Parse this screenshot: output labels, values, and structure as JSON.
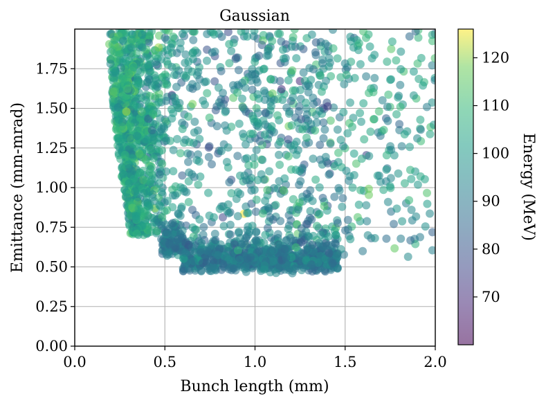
{
  "chart_data": {
    "type": "scatter",
    "title": "Gaussian",
    "xlabel": "Bunch length (mm)",
    "ylabel": "Emittance (mm-mrad)",
    "xlim": [
      0.0,
      2.0
    ],
    "ylim": [
      0.0,
      2.0
    ],
    "xticks": [
      "0.0",
      "0.5",
      "1.0",
      "1.5",
      "2.0"
    ],
    "xtick_values": [
      0.0,
      0.5,
      1.0,
      1.5,
      2.0
    ],
    "yticks": [
      "0.00",
      "0.25",
      "0.50",
      "0.75",
      "1.00",
      "1.25",
      "1.50",
      "1.75"
    ],
    "ytick_values": [
      0.0,
      0.25,
      0.5,
      0.75,
      1.0,
      1.25,
      1.5,
      1.75
    ],
    "grid": true,
    "colorbar": {
      "label": "Energy (MeV)",
      "range": [
        60,
        126
      ],
      "ticks": [
        "70",
        "80",
        "90",
        "100",
        "110",
        "120"
      ],
      "tick_values": [
        70,
        80,
        90,
        100,
        110,
        120
      ],
      "colormap": "viridis"
    },
    "marker_alpha": 0.55,
    "point_count": 2600,
    "description": "Dense cluster of points forming an L-shaped boundary: emittance rises steeply as bunch length decreases below ~0.5 mm (high energy ~105-120 MeV), and a dense floor near emittance 0.45-0.6 for bunch lengths 0.5-1.45 mm (energy ~85-100 MeV); sparse points scattered up to 2.0 mm."
  }
}
